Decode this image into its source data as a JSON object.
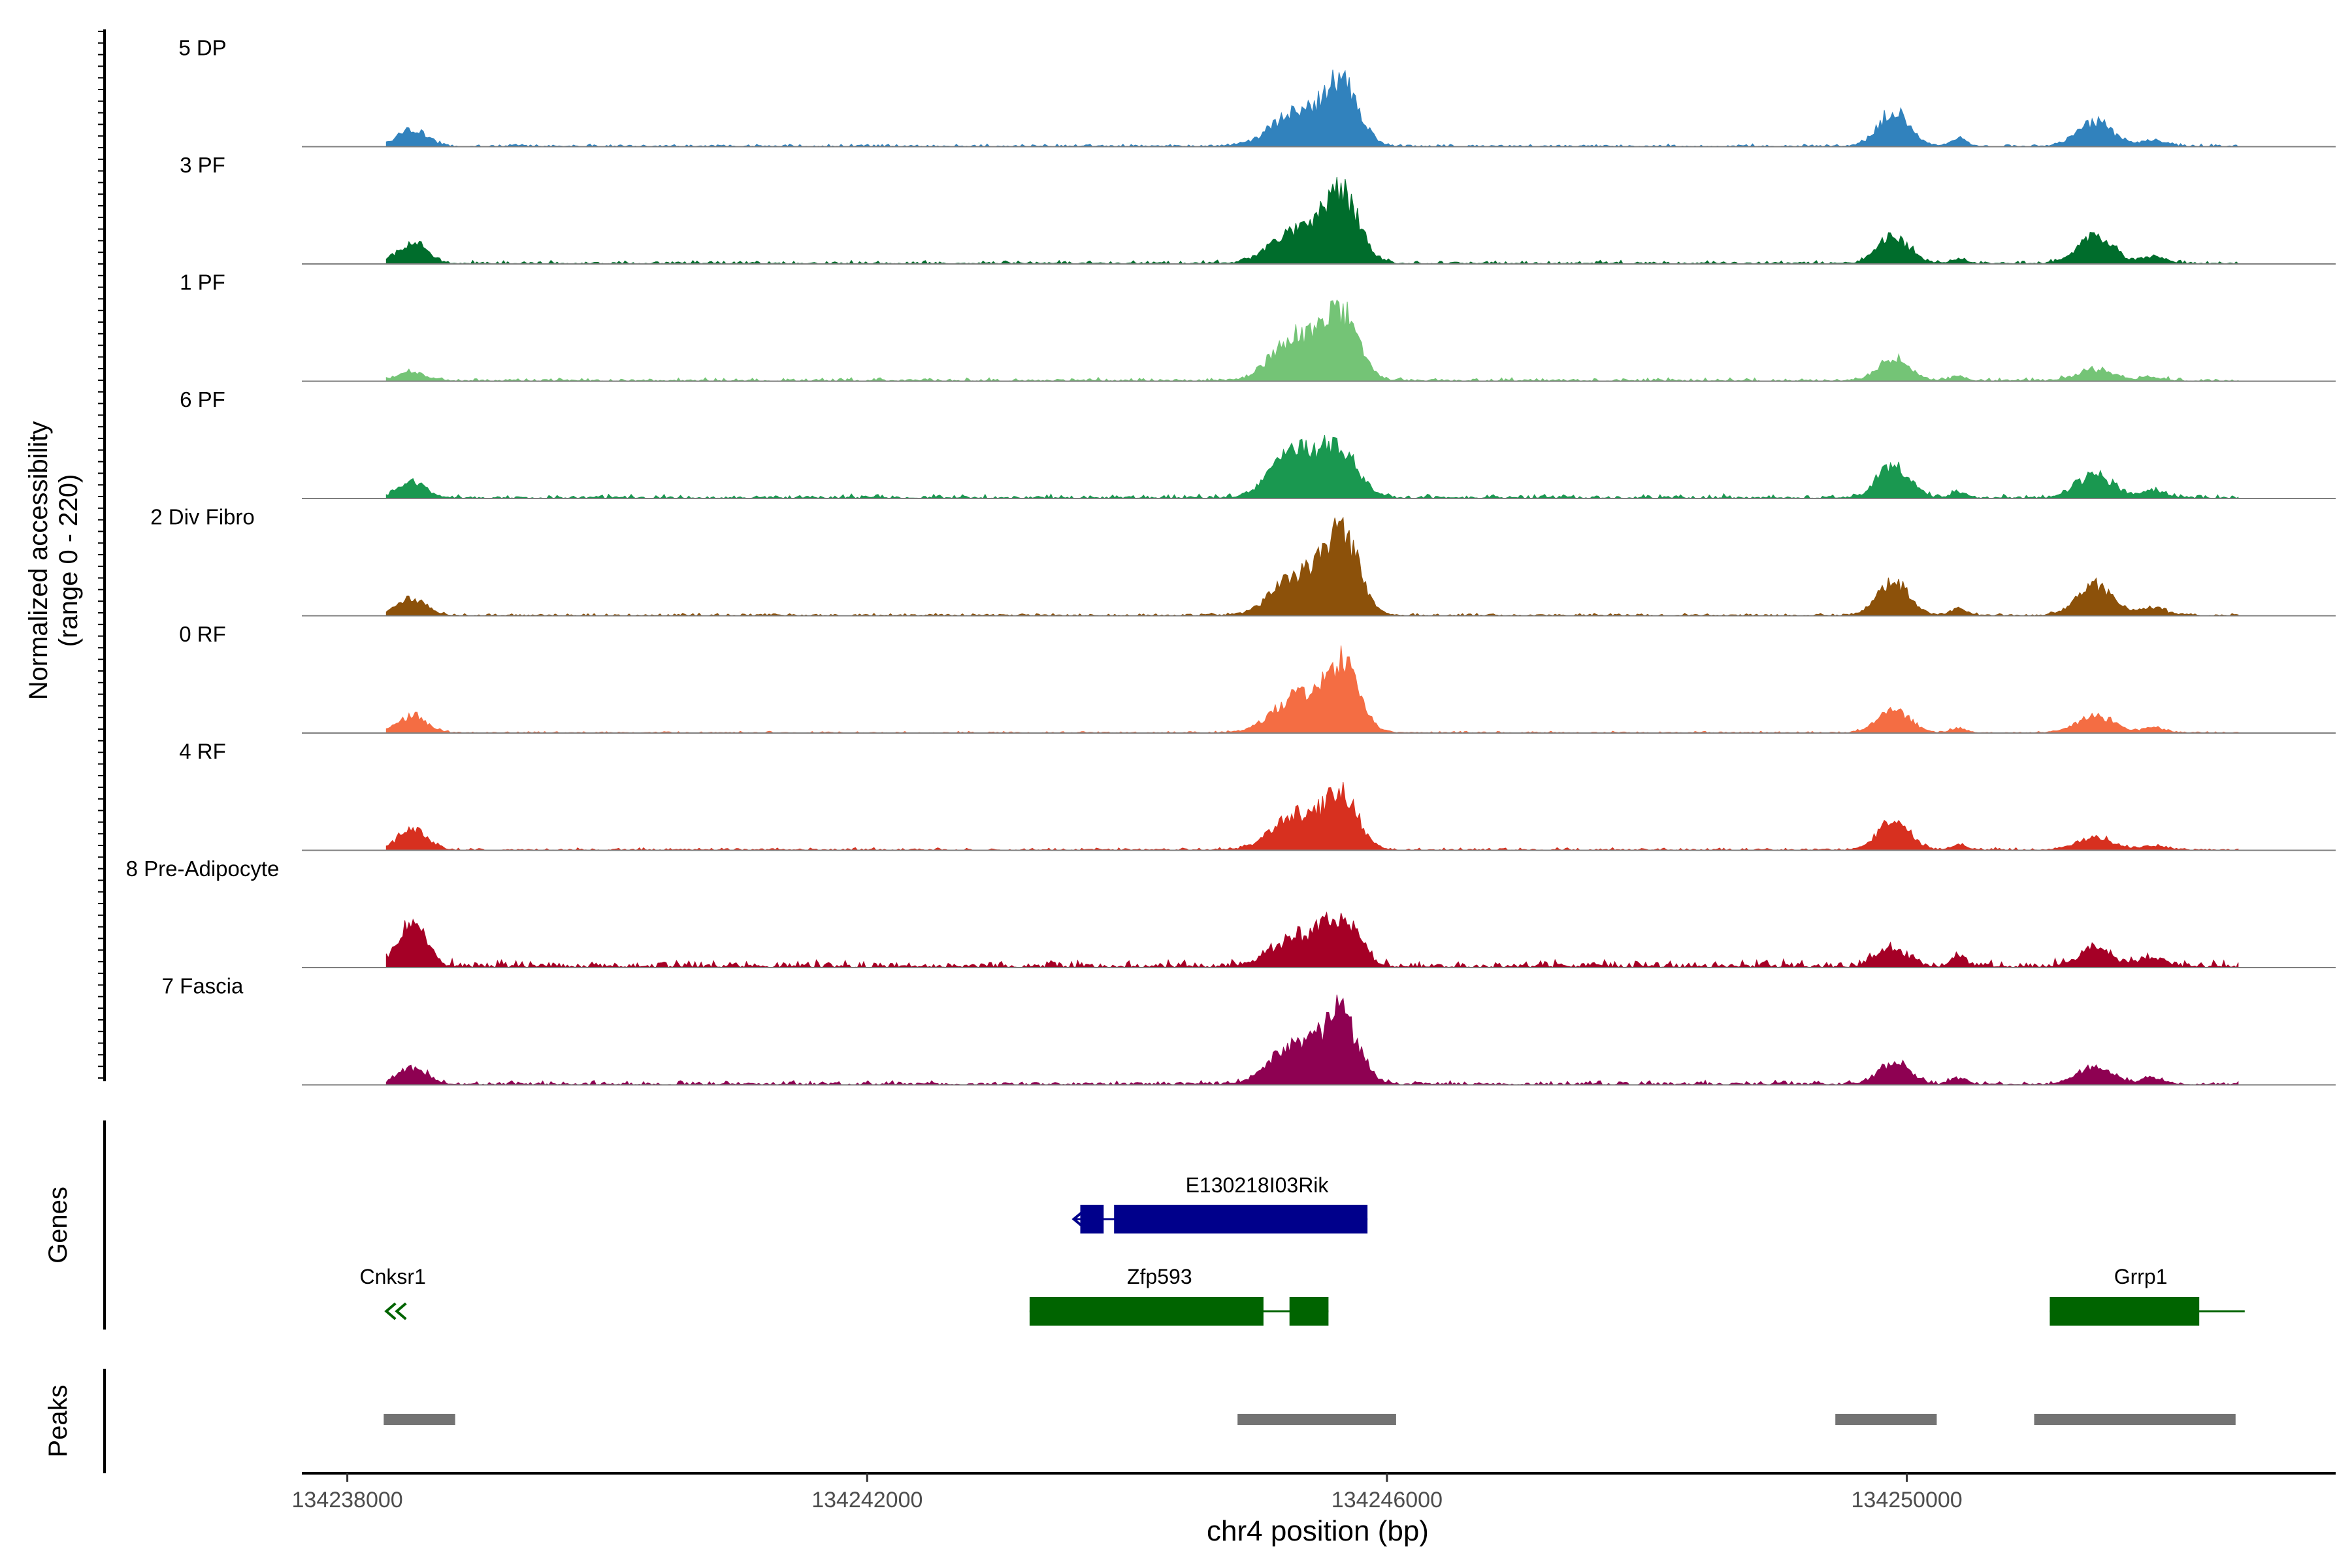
{
  "chart_data": {
    "type": "area",
    "title": "",
    "ylabel_line1": "Normalized accessibility",
    "ylabel_line2": "(range 0 - 220)",
    "xlabel": "chr4 position (bp)",
    "xlim": [
      134237650,
      134253300
    ],
    "ylim": [
      0,
      220
    ],
    "x_ticks": [
      134238000,
      134242000,
      134246000,
      134250000
    ],
    "x_tick_labels": [
      "134238000",
      "134242000",
      "134246000",
      "134250000"
    ],
    "coverage_range": [
      134238300,
      134252550
    ],
    "peak_profile": [
      {
        "center": 134238500,
        "width": 110
      },
      {
        "center": 134245300,
        "width": 180
      },
      {
        "center": 134245650,
        "width": 130
      },
      {
        "center": 134249900,
        "width": 120
      },
      {
        "center": 134250400,
        "width": 60
      },
      {
        "center": 134251450,
        "width": 140
      },
      {
        "center": 134251900,
        "width": 90
      }
    ],
    "series": [
      {
        "name": "5 DP",
        "color": "#3182bd",
        "heights": [
          0.17,
          0.35,
          0.63,
          0.35,
          0.08,
          0.24,
          0.06
        ],
        "noise": 0.03
      },
      {
        "name": "3 PF",
        "color": "#006d2c",
        "heights": [
          0.2,
          0.35,
          0.68,
          0.28,
          0.05,
          0.27,
          0.07
        ],
        "noise": 0.04
      },
      {
        "name": "1 PF",
        "color": "#74c476",
        "heights": [
          0.08,
          0.45,
          0.65,
          0.22,
          0.04,
          0.11,
          0.03
        ],
        "noise": 0.04
      },
      {
        "name": "6 PF",
        "color": "#1a9850",
        "heights": [
          0.15,
          0.5,
          0.45,
          0.33,
          0.06,
          0.23,
          0.07
        ],
        "noise": 0.05
      },
      {
        "name": "2 Div Fibro",
        "color": "#8c510a",
        "heights": [
          0.17,
          0.4,
          0.82,
          0.35,
          0.07,
          0.29,
          0.08
        ],
        "noise": 0.03
      },
      {
        "name": "0 RF",
        "color": "#f46d43",
        "heights": [
          0.17,
          0.35,
          0.66,
          0.24,
          0.05,
          0.17,
          0.05
        ],
        "noise": 0.02
      },
      {
        "name": "4 RF",
        "color": "#d7301f",
        "heights": [
          0.2,
          0.35,
          0.52,
          0.3,
          0.05,
          0.12,
          0.04
        ],
        "noise": 0.03
      },
      {
        "name": "8 Pre-Adipocyte",
        "color": "#a50026",
        "heights": [
          0.38,
          0.3,
          0.45,
          0.18,
          0.1,
          0.16,
          0.1
        ],
        "noise": 0.09
      },
      {
        "name": "7 Fascia",
        "color": "#8e0152",
        "heights": [
          0.15,
          0.4,
          0.65,
          0.22,
          0.06,
          0.16,
          0.06
        ],
        "noise": 0.05
      }
    ],
    "genes": [
      {
        "name": "E130218I03Rik",
        "color": "#00008b",
        "start": 134243600,
        "end": 134245850,
        "row": 0,
        "strand": "-",
        "exons": [
          [
            134243640,
            134243820
          ],
          [
            134243900,
            134245850
          ]
        ],
        "label_pos": 134245000
      },
      {
        "name": "Cnksr1",
        "color": "#006400",
        "start": 134238300,
        "end": 134238500,
        "row": 1,
        "strand": "-",
        "exons": [],
        "label_pos": 134238350
      },
      {
        "name": "Zfp593",
        "color": "#006400",
        "start": 134243250,
        "end": 134245550,
        "row": 1,
        "strand": "+",
        "exons": [
          [
            134243250,
            134245050
          ],
          [
            134245250,
            134245550
          ]
        ],
        "label_pos": 134244250
      },
      {
        "name": "Grrp1",
        "color": "#006400",
        "start": 134251100,
        "end": 134252600,
        "row": 1,
        "strand": "+",
        "exons": [
          [
            134251100,
            134252250
          ]
        ],
        "label_pos": 134251800
      }
    ],
    "peaks_label": "Peaks",
    "genes_label": "Genes",
    "peaks": [
      [
        134238280,
        134238830
      ],
      [
        134244850,
        134246070
      ],
      [
        134249450,
        134250230
      ],
      [
        134250980,
        134252530
      ]
    ]
  }
}
